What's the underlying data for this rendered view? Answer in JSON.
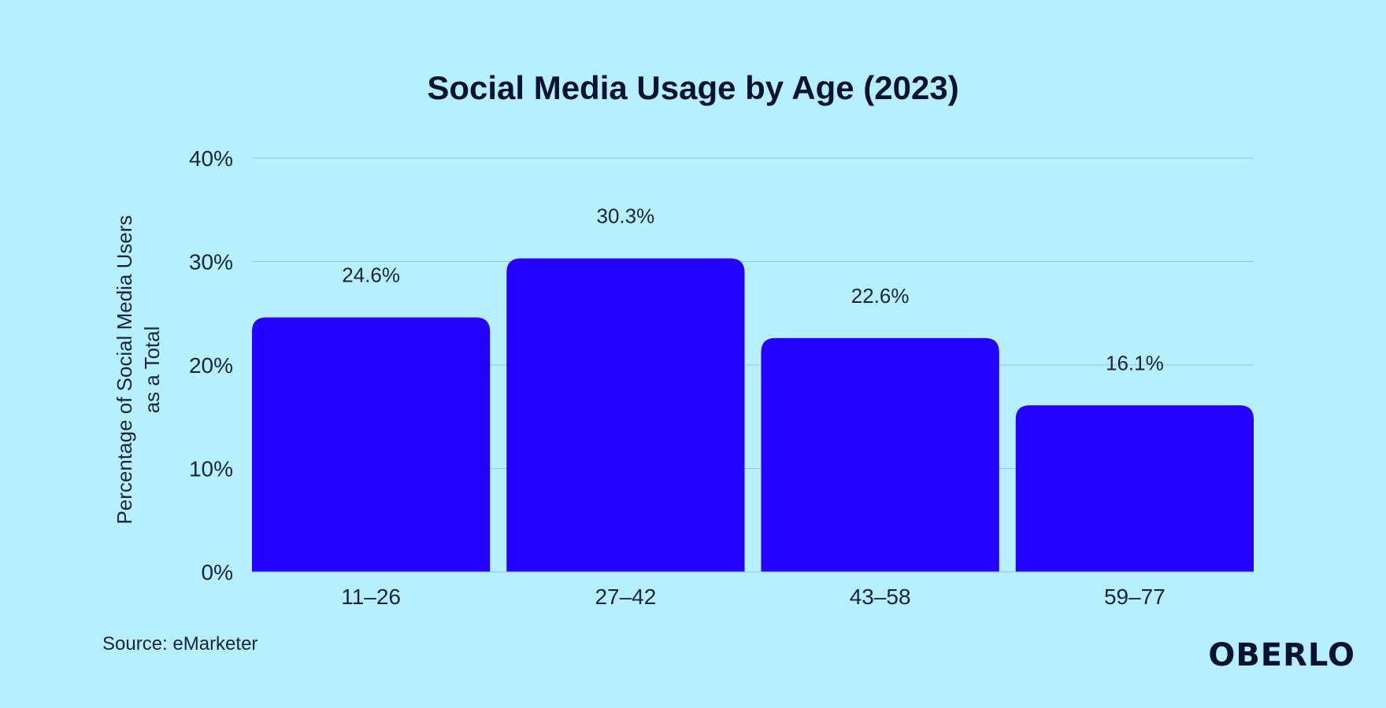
{
  "chart_data": {
    "type": "bar",
    "title": "Social Media Usage by Age (2023)",
    "xlabel": "",
    "ylabel_lines": [
      "Percentage of Social Media Users",
      "as a Total"
    ],
    "categories": [
      "11–26",
      "27–42",
      "43–58",
      "59–77"
    ],
    "values": [
      24.6,
      30.3,
      22.6,
      16.1
    ],
    "value_labels": [
      "24.6%",
      "30.3%",
      "22.6%",
      "16.1%"
    ],
    "ylim": [
      0,
      40
    ],
    "y_ticks": [
      0,
      10,
      20,
      30,
      40
    ],
    "y_tick_labels": [
      "0%",
      "10%",
      "20%",
      "30%",
      "40%"
    ],
    "grid": true
  },
  "footer": {
    "source": "Source: eMarketer",
    "brand": "OBERLO"
  },
  "colors": {
    "background": "#b6f0ff",
    "bar": "#2400ff",
    "text": "#071233",
    "grid": "#8fc8d6"
  }
}
